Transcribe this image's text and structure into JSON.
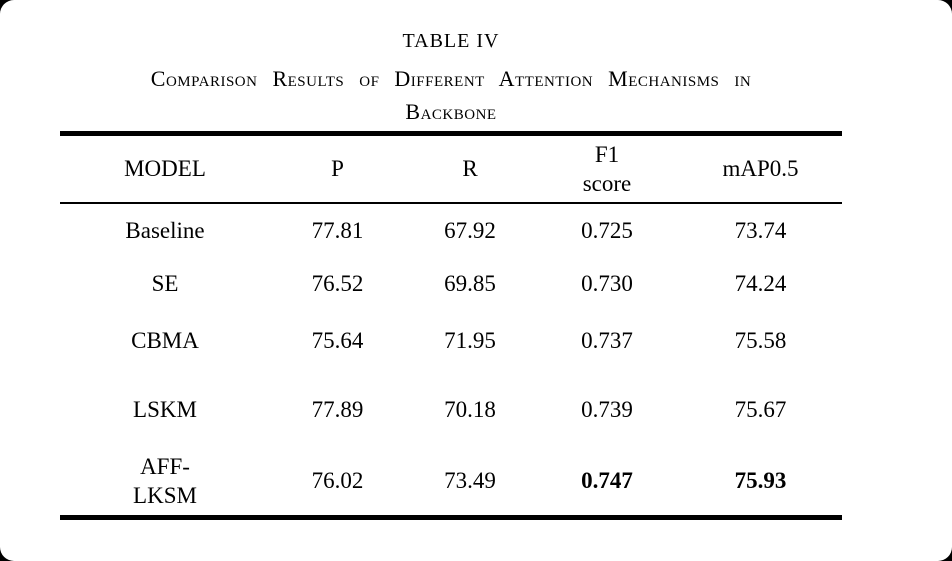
{
  "page": {
    "background": "#000000",
    "card_background": "#ffffff",
    "text_color": "#000000",
    "rule_color": "#000000"
  },
  "caption": {
    "label": "TABLE IV",
    "line1": "Comparison Results of Different Attention Mechanisms in",
    "line2": "Backbone"
  },
  "table": {
    "columns": [
      "MODEL",
      "P",
      "R",
      "F1\nscore",
      "mAP0.5"
    ],
    "rows": [
      {
        "model": "Baseline",
        "p": "77.81",
        "r": "67.92",
        "f1": "0.725",
        "map05": "73.74"
      },
      {
        "model": "SE",
        "p": "76.52",
        "r": "69.85",
        "f1": "0.730",
        "map05": "74.24"
      },
      {
        "model": "CBMA",
        "p": "75.64",
        "r": "71.95",
        "f1": "0.737",
        "map05": "75.58"
      },
      {
        "model": "LSKM",
        "p": "77.89",
        "r": "70.18",
        "f1": "0.739",
        "map05": "75.67"
      },
      {
        "model": "AFF-\nLKSM",
        "p": "76.02",
        "r": "73.49",
        "f1": "0.747",
        "map05": "75.93"
      }
    ]
  }
}
